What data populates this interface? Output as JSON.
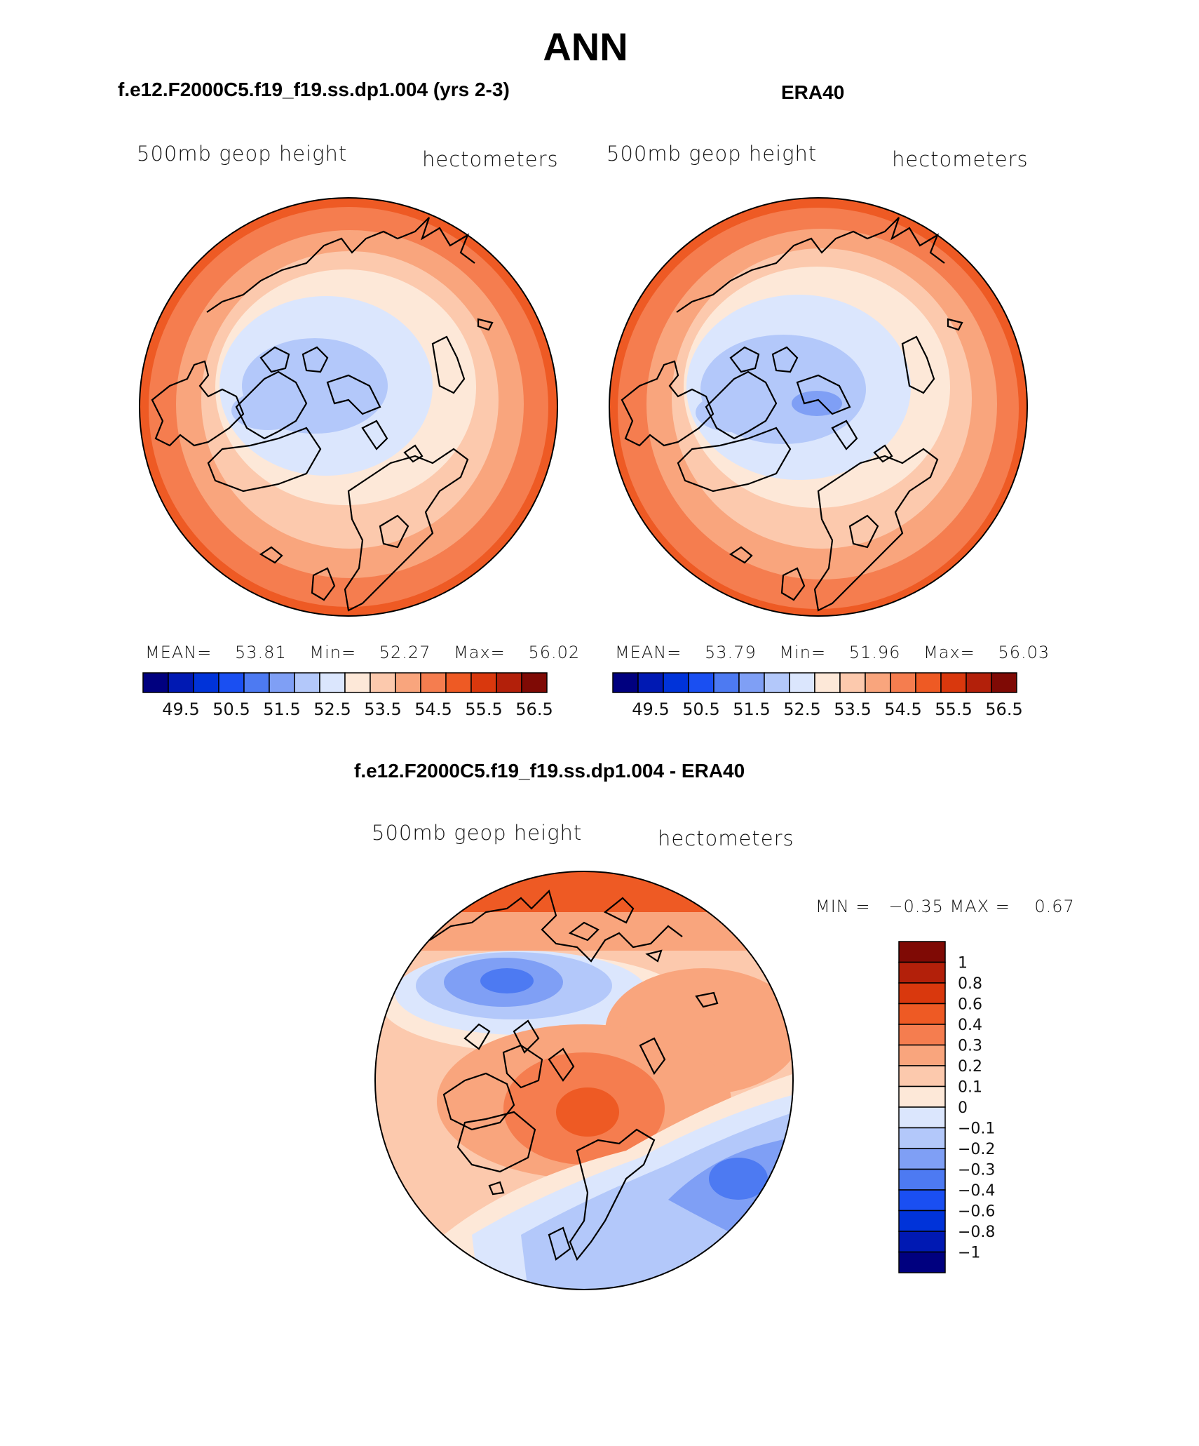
{
  "main_title": "ANN",
  "panels": [
    {
      "heading": "f.e12.F2000C5.f19_f19.ss.dp1.004 (yrs 2-3)",
      "left_label": "500mb geop height",
      "right_label": "hectometers",
      "stats": {
        "mean_label": "MEAN=",
        "mean": "53.81",
        "min_label": "Min=",
        "min": "52.27",
        "max_label": "Max=",
        "max": "56.02"
      }
    },
    {
      "heading": "ERA40",
      "left_label": "500mb geop height",
      "right_label": "hectometers",
      "stats": {
        "mean_label": "MEAN=",
        "mean": "53.79",
        "min_label": "Min=",
        "min": "51.96",
        "max_label": "Max=",
        "max": "56.03"
      }
    }
  ],
  "colorbar": {
    "colors": [
      "#00007f",
      "#0019b3",
      "#0033d9",
      "#1a4ff2",
      "#4d7af2",
      "#7f9ff5",
      "#b3c8fa",
      "#dbe6fd",
      "#fde8d8",
      "#fcc9ad",
      "#f9a57d",
      "#f57d4f",
      "#ee5a24",
      "#d9380d",
      "#b3200a",
      "#7f0a05"
    ],
    "tick_labels": [
      "49.5",
      "50.5",
      "51.5",
      "52.5",
      "53.5",
      "54.5",
      "55.5",
      "56.5"
    ]
  },
  "diff": {
    "heading": "f.e12.F2000C5.f19_f19.ss.dp1.004 - ERA40",
    "left_label": "500mb geop height",
    "right_label": "hectometers",
    "minmax": "MIN =   −0.35 MAX =    0.67",
    "colorbar": {
      "colors": [
        "#7f0a05",
        "#b3200a",
        "#d9380d",
        "#ee5a24",
        "#f57d4f",
        "#f9a57d",
        "#fcc9ad",
        "#fde8d8",
        "#dbe6fd",
        "#b3c8fa",
        "#7f9ff5",
        "#4d7af2",
        "#1a4ff2",
        "#0033d9",
        "#0019b3",
        "#00007f"
      ],
      "tick_labels": [
        "1",
        "0.8",
        "0.6",
        "0.4",
        "0.3",
        "0.2",
        "0.1",
        "0",
        "−0.1",
        "−0.2",
        "−0.3",
        "−0.4",
        "−0.6",
        "−0.8",
        "−1"
      ]
    }
  }
}
